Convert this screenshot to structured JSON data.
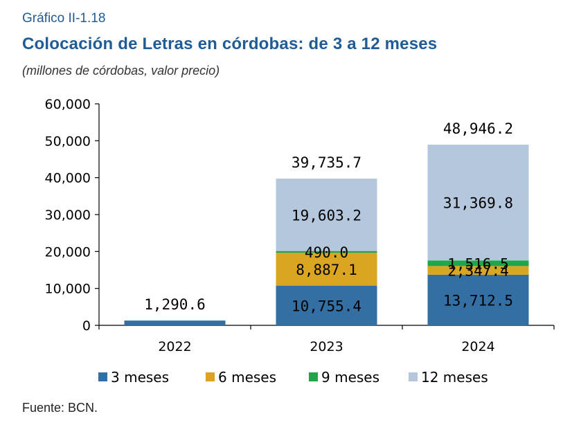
{
  "header": {
    "label": "Gráfico II-1.18",
    "title": "Colocación de Letras en córdobas: de 3 a 12 meses",
    "subtitle": "(millones de córdobas, valor precio)"
  },
  "footer": {
    "source": "Fuente: BCN."
  },
  "chart_data": {
    "type": "bar",
    "stacked": true,
    "categories": [
      "2022",
      "2023",
      "2024"
    ],
    "ylim": [
      0,
      60000
    ],
    "yticks": [
      0,
      10000,
      20000,
      30000,
      40000,
      50000,
      60000
    ],
    "ytick_labels": [
      "0",
      "10,000",
      "20,000",
      "30,000",
      "40,000",
      "50,000",
      "60,000"
    ],
    "grid": false,
    "legend_position": "bottom",
    "series": [
      {
        "name": "3 meses",
        "color": "#336fa3",
        "values": [
          1290.6,
          10755.4,
          13712.5
        ],
        "labels": [
          "",
          "10,755.4",
          "13,712.5"
        ]
      },
      {
        "name": "6 meses",
        "color": "#daa520",
        "values": [
          0,
          8887.1,
          2347.4
        ],
        "labels": [
          "",
          "8,887.1",
          "2,347.4"
        ]
      },
      {
        "name": "9 meses",
        "color": "#1fa64a",
        "values": [
          0,
          490.0,
          1516.5
        ],
        "labels": [
          "",
          "490.0",
          "1,516.5"
        ]
      },
      {
        "name": "12 meses",
        "color": "#b4c7dc",
        "values": [
          0,
          19603.2,
          31369.8
        ],
        "labels": [
          "",
          "19,603.2",
          "31,369.8"
        ]
      }
    ],
    "totals": [
      1290.6,
      39735.7,
      48946.2
    ],
    "total_labels": [
      "1,290.6",
      "39,735.7",
      "48,946.2"
    ]
  }
}
